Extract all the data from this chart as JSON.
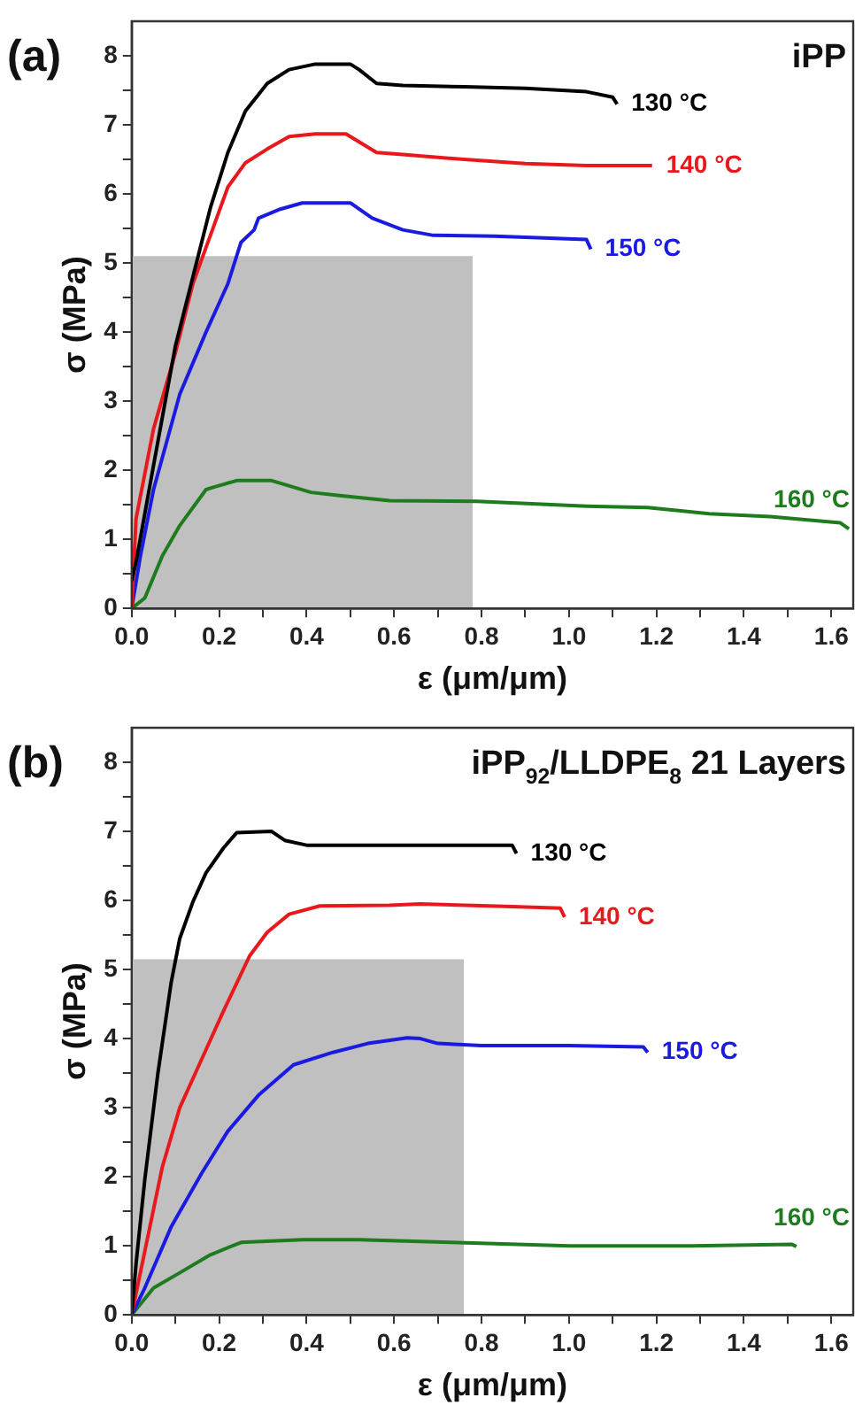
{
  "chart_data": [
    {
      "type": "line",
      "title": "iPP",
      "xlabel": "ε (μm/μm)",
      "ylabel": "σ (MPa)",
      "annotations": [
        "(a)"
      ],
      "xlim": [
        0,
        1.65
      ],
      "ylim": [
        0,
        8.5
      ],
      "xticks": [
        {
          "value": 0,
          "label": "0.0"
        },
        {
          "value": 0.1,
          "label": null
        },
        0.2,
        {
          "value": 0.3,
          "label": null
        },
        0.4,
        {
          "value": 0.5,
          "label": null
        },
        0.6,
        {
          "value": 0.7,
          "label": null
        },
        0.8,
        {
          "value": 0.9,
          "label": null
        },
        {
          "value": 1,
          "label": "1.0"
        },
        {
          "value": 1.1,
          "label": null
        },
        1.2,
        {
          "value": 1.3,
          "label": null
        },
        1.4,
        {
          "value": 1.5,
          "label": null
        },
        1.6
      ],
      "yticks": [
        0,
        {
          "value": 0.5,
          "label": null
        },
        1,
        {
          "value": 1.5,
          "label": null
        },
        2,
        {
          "value": 2.5,
          "label": null
        },
        3,
        {
          "value": 3.5,
          "label": null
        },
        4,
        {
          "value": 4.5,
          "label": null
        },
        5,
        {
          "value": 5.5,
          "label": null
        },
        6,
        {
          "value": 6.5,
          "label": null
        },
        7,
        {
          "value": 7.5,
          "label": null
        },
        8
      ],
      "grid": false,
      "legend": false,
      "marker": "none",
      "line_style": "solid",
      "series": [
        {
          "type": "area",
          "color": "#c0c0c0",
          "x": [
            0,
            0.78
          ],
          "values": [
            5.1,
            5.1
          ]
        },
        {
          "name": "130 °C",
          "color": "#000000",
          "x": [
            0,
            0.01,
            0.05,
            0.1,
            0.14,
            0.18,
            0.22,
            0.26,
            0.31,
            0.36,
            0.42,
            0.5,
            0.52,
            0.56,
            0.62,
            0.76,
            0.9,
            1.04,
            1.1,
            1.11
          ],
          "values": [
            0.4,
            0.67,
            2.07,
            3.8,
            4.8,
            5.8,
            6.6,
            7.2,
            7.6,
            7.8,
            7.88,
            7.88,
            7.8,
            7.6,
            7.57,
            7.55,
            7.53,
            7.48,
            7.4,
            7.3
          ]
        },
        {
          "name": "140 °C",
          "color": "#e8191c",
          "x": [
            0,
            0.01,
            0.05,
            0.1,
            0.14,
            0.18,
            0.22,
            0.26,
            0.31,
            0.36,
            0.42,
            0.49,
            0.56,
            0.62,
            0.76,
            0.9,
            1.04,
            1.19
          ],
          "values": [
            0,
            1.3,
            2.6,
            3.7,
            4.7,
            5.4,
            6.1,
            6.45,
            6.65,
            6.83,
            6.87,
            6.87,
            6.6,
            6.57,
            6.5,
            6.44,
            6.41,
            6.41
          ]
        },
        {
          "name": "150 °C",
          "color": "#1a1ae0",
          "x": [
            0,
            0.02,
            0.05,
            0.11,
            0.17,
            0.22,
            0.25,
            0.28,
            0.29,
            0.34,
            0.39,
            0.5,
            0.55,
            0.62,
            0.69,
            0.83,
            1.04,
            1.05
          ],
          "values": [
            0,
            0.76,
            1.72,
            3.1,
            4.0,
            4.7,
            5.3,
            5.48,
            5.65,
            5.78,
            5.87,
            5.87,
            5.65,
            5.48,
            5.4,
            5.39,
            5.34,
            5.2
          ]
        },
        {
          "name": "160 °C",
          "color": "#1e7b1e",
          "x": [
            0,
            0.03,
            0.07,
            0.11,
            0.17,
            0.19,
            0.24,
            0.32,
            0.41,
            0.48,
            0.59,
            0.79,
            1.04,
            1.18,
            1.32,
            1.46,
            1.62,
            1.64
          ],
          "values": [
            0,
            0.15,
            0.76,
            1.2,
            1.72,
            1.76,
            1.85,
            1.85,
            1.68,
            1.63,
            1.56,
            1.55,
            1.48,
            1.46,
            1.37,
            1.33,
            1.24,
            1.15
          ]
        }
      ]
    },
    {
      "type": "line",
      "title": "iPP$_{92}$/LLDPE$_{8}$ 21 Layers",
      "xlabel": "ε (μm/μm)",
      "ylabel": "σ (MPa)",
      "annotations": [
        "(b)"
      ],
      "xlim": [
        0,
        1.65
      ],
      "ylim": [
        0,
        8.5
      ],
      "xticks": [
        {
          "value": 0,
          "label": "0.0"
        },
        {
          "value": 0.1,
          "label": null
        },
        0.2,
        {
          "value": 0.3,
          "label": null
        },
        0.4,
        {
          "value": 0.5,
          "label": null
        },
        0.6,
        {
          "value": 0.7,
          "label": null
        },
        0.8,
        {
          "value": 0.9,
          "label": null
        },
        {
          "value": 1,
          "label": "1.0"
        },
        {
          "value": 1.1,
          "label": null
        },
        1.2,
        {
          "value": 1.3,
          "label": null
        },
        1.4,
        {
          "value": 1.5,
          "label": null
        },
        1.6
      ],
      "yticks": [
        0,
        {
          "value": 0.5,
          "label": null
        },
        1,
        {
          "value": 1.5,
          "label": null
        },
        2,
        {
          "value": 2.5,
          "label": null
        },
        3,
        {
          "value": 3.5,
          "label": null
        },
        4,
        {
          "value": 4.5,
          "label": null
        },
        5,
        {
          "value": 5.5,
          "label": null
        },
        6,
        {
          "value": 6.5,
          "label": null
        },
        7,
        {
          "value": 7.5,
          "label": null
        },
        8
      ],
      "grid": false,
      "legend": false,
      "marker": "none",
      "line_style": "solid",
      "series": [
        {
          "type": "area",
          "color": "#c0c0c0",
          "x": [
            0,
            0.76
          ],
          "values": [
            5.15,
            5.15
          ]
        },
        {
          "name": "130 °C",
          "color": "#000000",
          "x": [
            0,
            0.01,
            0.03,
            0.06,
            0.09,
            0.11,
            0.14,
            0.17,
            0.21,
            0.24,
            0.32,
            0.35,
            0.4,
            0.59,
            0.87,
            0.88
          ],
          "values": [
            0,
            0.74,
            1.96,
            3.5,
            4.8,
            5.45,
            5.98,
            6.4,
            6.76,
            6.98,
            7.0,
            6.87,
            6.8,
            6.8,
            6.8,
            6.68
          ]
        },
        {
          "name": "140 °C",
          "color": "#e8191c",
          "x": [
            0,
            0.03,
            0.07,
            0.11,
            0.16,
            0.21,
            0.27,
            0.31,
            0.36,
            0.43,
            0.59,
            0.66,
            0.87,
            0.98,
            0.99
          ],
          "values": [
            0,
            0.92,
            2.14,
            3.0,
            3.7,
            4.4,
            5.2,
            5.54,
            5.8,
            5.92,
            5.93,
            5.95,
            5.91,
            5.89,
            5.76
          ]
        },
        {
          "name": "150 °C",
          "color": "#1a1ae0",
          "x": [
            0,
            0.03,
            0.09,
            0.16,
            0.22,
            0.29,
            0.37,
            0.46,
            0.54,
            0.63,
            0.66,
            0.7,
            0.8,
            1.0,
            1.17,
            1.18
          ],
          "values": [
            0,
            0.39,
            1.27,
            2.05,
            2.66,
            3.18,
            3.62,
            3.8,
            3.93,
            4.01,
            4.0,
            3.93,
            3.9,
            3.9,
            3.88,
            3.8
          ]
        },
        {
          "name": "160 °C",
          "color": "#1e7b1e",
          "x": [
            0,
            0.05,
            0.11,
            0.18,
            0.25,
            0.39,
            0.52,
            0.73,
            1.0,
            1.28,
            1.51,
            1.52
          ],
          "values": [
            0,
            0.39,
            0.61,
            0.87,
            1.05,
            1.09,
            1.09,
            1.05,
            1.0,
            1.0,
            1.02,
            0.99
          ]
        }
      ]
    }
  ]
}
